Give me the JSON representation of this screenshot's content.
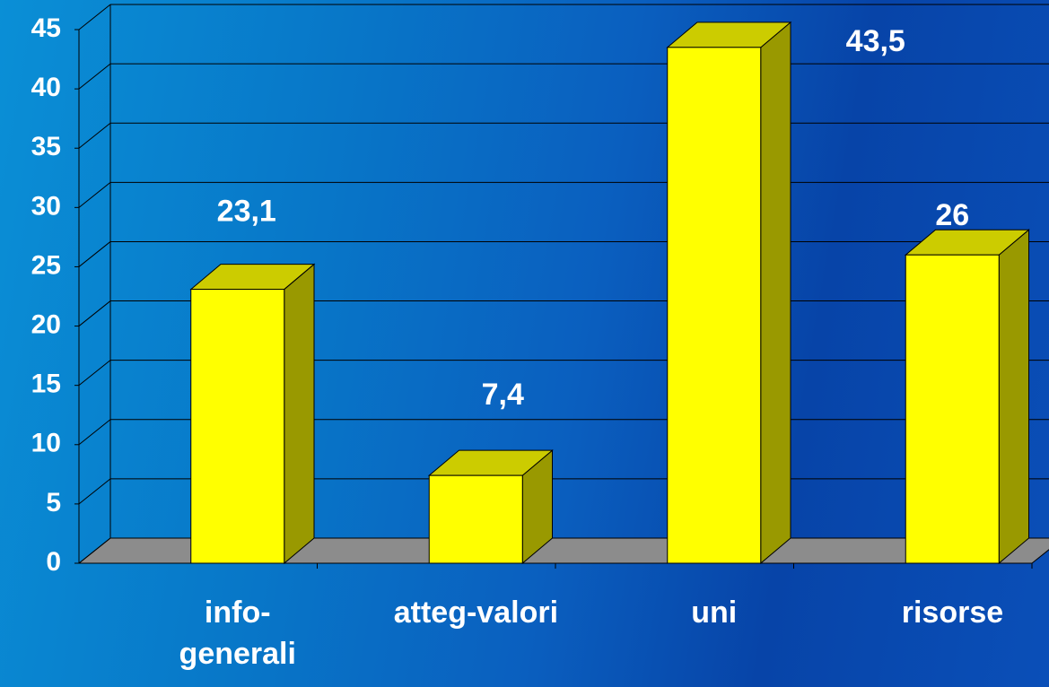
{
  "chart_data": {
    "type": "bar3d",
    "categories": [
      "info-generali",
      "atteg-valori",
      "uni",
      "risorse"
    ],
    "values": [
      23.1,
      7.4,
      43.5,
      26
    ],
    "value_labels": [
      "23,1",
      "7,4",
      "43,5",
      "26"
    ],
    "color": "#ffff00",
    "ylim": [
      0,
      45
    ],
    "yticks": [
      0,
      5,
      10,
      15,
      20,
      25,
      30,
      35,
      40,
      45
    ],
    "grid": true
  }
}
